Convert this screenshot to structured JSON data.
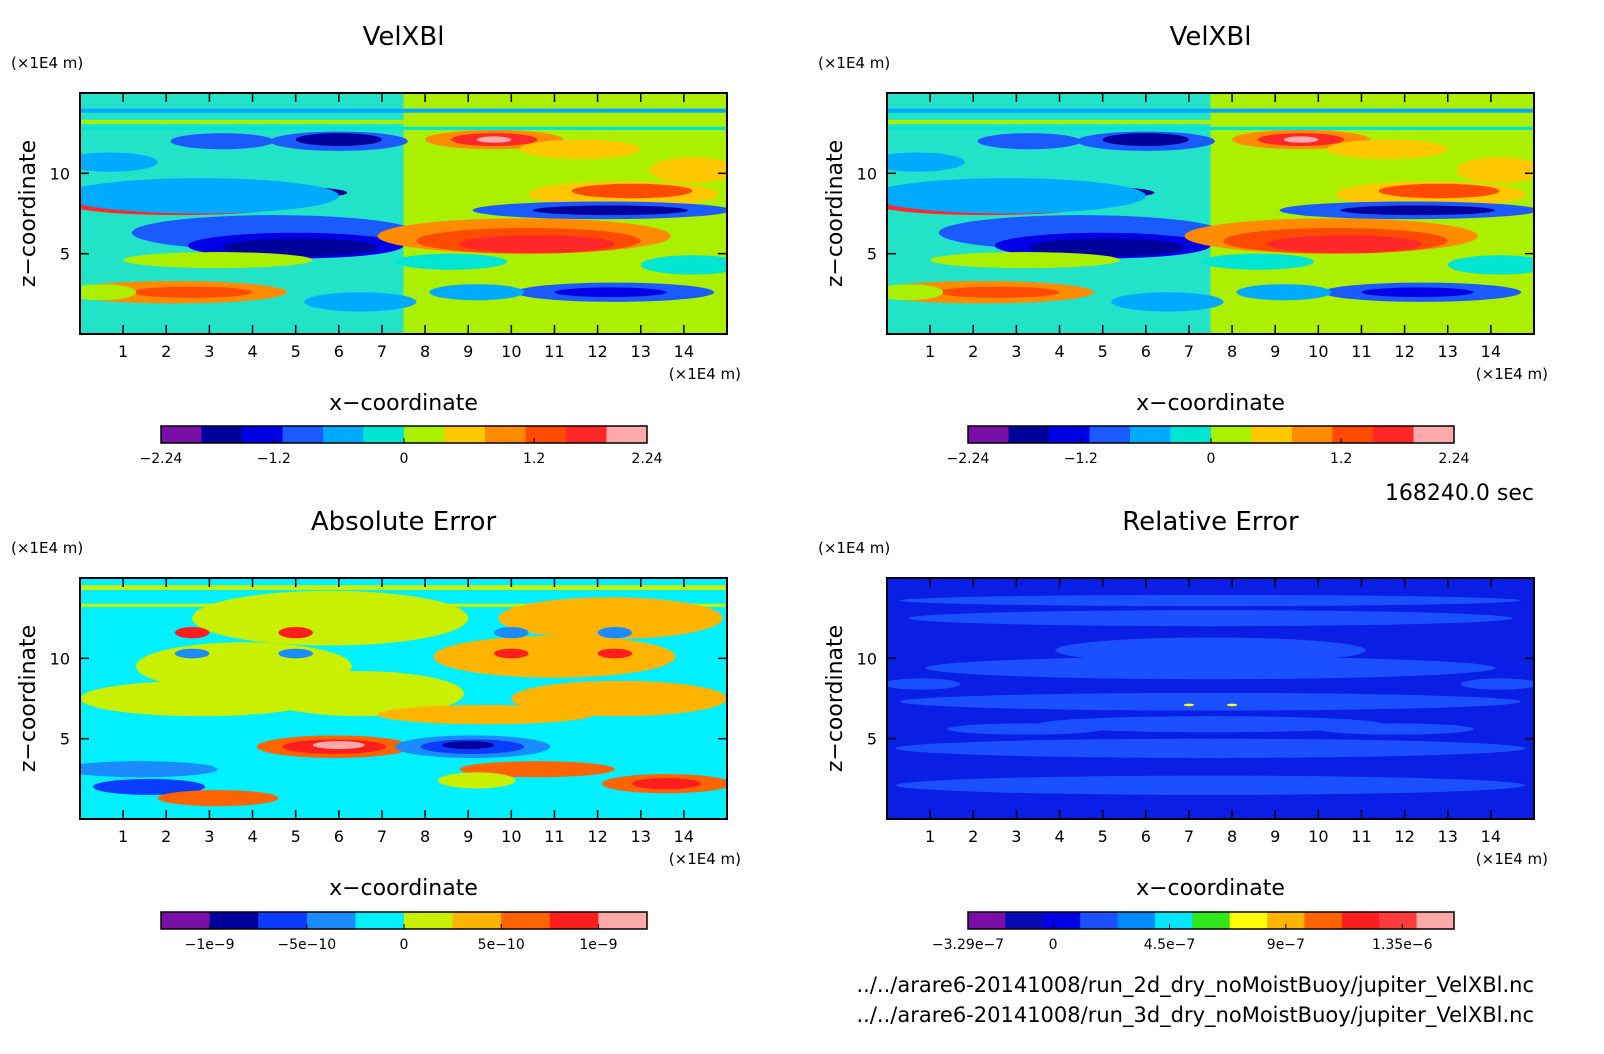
{
  "figure": {
    "time_label": "168240.0 sec",
    "files": [
      "../../arare6-20141008/run_2d_dry_noMoistBuoy/jupiter_VelXBl.nc",
      "../../arare6-20141008/run_3d_dry_noMoistBuoy/jupiter_VelXBl.nc"
    ]
  },
  "chart_data": [
    {
      "type": "heatmap",
      "title": "VelXBl",
      "xlabel": "x−coordinate",
      "ylabel": "z−coordinate",
      "x_unit": "(×1E4 m)",
      "y_unit": "(×1E4 m)",
      "xlim": [
        0,
        15
      ],
      "ylim": [
        0,
        15
      ],
      "xticks": [
        1,
        2,
        3,
        4,
        5,
        6,
        7,
        8,
        9,
        10,
        11,
        12,
        13,
        14
      ],
      "yticks": [
        5,
        10
      ],
      "colorbar": {
        "ticks": [
          "−2.24",
          "−1.2",
          "0",
          "1.2",
          "2.24"
        ],
        "tick_values": [
          -2.24,
          -1.2,
          0,
          1.2,
          2.24
        ],
        "range": [
          -2.24,
          2.24
        ],
        "colors": [
          "#7a0fa8",
          "#00009a",
          "#0000e6",
          "#1a5aff",
          "#00aaff",
          "#00e6d2",
          "#aaf000",
          "#ffc800",
          "#ff8c00",
          "#ff4b00",
          "#ff2828",
          "#ffaaaa"
        ]
      },
      "background_color": "#22e3c7"
    },
    {
      "type": "heatmap",
      "title": "VelXBl",
      "xlabel": "x−coordinate",
      "ylabel": "z−coordinate",
      "x_unit": "(×1E4 m)",
      "y_unit": "(×1E4 m)",
      "xlim": [
        0,
        15
      ],
      "ylim": [
        0,
        15
      ],
      "xticks": [
        1,
        2,
        3,
        4,
        5,
        6,
        7,
        8,
        9,
        10,
        11,
        12,
        13,
        14
      ],
      "yticks": [
        5,
        10
      ],
      "colorbar": {
        "ticks": [
          "−2.24",
          "−1.2",
          "0",
          "1.2",
          "2.24"
        ],
        "tick_values": [
          -2.24,
          -1.2,
          0,
          1.2,
          2.24
        ],
        "range": [
          -2.24,
          2.24
        ],
        "colors": [
          "#7a0fa8",
          "#00009a",
          "#0000e6",
          "#1a5aff",
          "#00aaff",
          "#00e6d2",
          "#aaf000",
          "#ffc800",
          "#ff8c00",
          "#ff4b00",
          "#ff2828",
          "#ffaaaa"
        ]
      },
      "background_color": "#22e3c7"
    },
    {
      "type": "heatmap",
      "title": "Absolute Error",
      "xlabel": "x−coordinate",
      "ylabel": "z−coordinate",
      "x_unit": "(×1E4 m)",
      "y_unit": "(×1E4 m)",
      "xlim": [
        0,
        15
      ],
      "ylim": [
        0,
        15
      ],
      "xticks": [
        1,
        2,
        3,
        4,
        5,
        6,
        7,
        8,
        9,
        10,
        11,
        12,
        13,
        14
      ],
      "yticks": [
        5,
        10
      ],
      "colorbar": {
        "ticks": [
          "−1e−9",
          "−5e−10",
          "0",
          "5e−10",
          "1e−9"
        ],
        "tick_values": [
          -1e-09,
          -5e-10,
          0,
          5e-10,
          1e-09
        ],
        "range": [
          -1.25e-09,
          1.25e-09
        ],
        "colors": [
          "#7a0fa8",
          "#00009a",
          "#0a3cff",
          "#1a8cff",
          "#00f0ff",
          "#c8f000",
          "#ffb400",
          "#ff6400",
          "#ff1e1e",
          "#ffaaaa"
        ]
      },
      "background_color": "#00f0ff"
    },
    {
      "type": "heatmap",
      "title": "Relative Error",
      "xlabel": "x−coordinate",
      "ylabel": "z−coordinate",
      "x_unit": "(×1E4 m)",
      "y_unit": "(×1E4 m)",
      "xlim": [
        0,
        15
      ],
      "ylim": [
        0,
        15
      ],
      "xticks": [
        1,
        2,
        3,
        4,
        5,
        6,
        7,
        8,
        9,
        10,
        11,
        12,
        13,
        14
      ],
      "yticks": [
        5,
        10
      ],
      "colorbar": {
        "ticks": [
          "−3.29e−7",
          "0",
          "4.5e−7",
          "9e−7",
          "1.35e−6"
        ],
        "tick_values": [
          -3.29e-07,
          0,
          4.5e-07,
          9e-07,
          1.35e-06
        ],
        "range": [
          -3.29e-07,
          1.55e-06
        ],
        "colors": [
          "#7a0fa8",
          "#0a0ab4",
          "#0000e6",
          "#1a50ff",
          "#008cff",
          "#00e6ff",
          "#32e61e",
          "#ffff00",
          "#ffb400",
          "#ff6400",
          "#ff1e1e",
          "#ff3c3c",
          "#ffaaaa"
        ]
      },
      "background_color": "#0a1ee6"
    }
  ]
}
